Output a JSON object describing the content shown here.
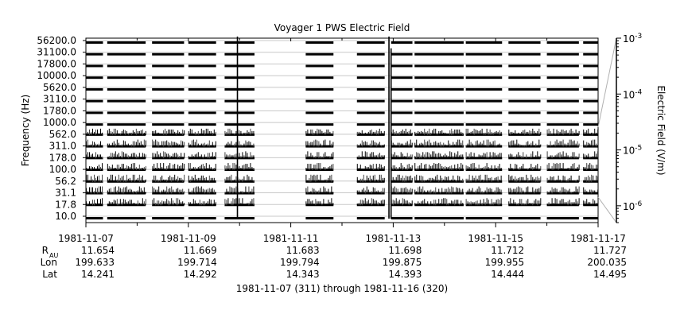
{
  "chart_data": {
    "type": "heatmap",
    "title": "Voyager 1 PWS Electric Field",
    "ylabel": "Frequency (Hz)",
    "y2label": "Electric Field (V/m)",
    "subtitle": "1981-11-07 (311) through 1981-11-16 (320)",
    "channels_hz": [
      10.0,
      17.8,
      31.1,
      56.2,
      100.0,
      178.0,
      311.0,
      562.0,
      1000.0,
      1780.0,
      3110.0,
      5620.0,
      10000.0,
      17800.0,
      31100.0,
      56200.0
    ],
    "channel_labels": [
      "10.0",
      "17.8",
      "31.1",
      "56.2",
      "100.0",
      "178.0",
      "311.0",
      "562.0",
      "1000.0",
      "1780.0",
      "3110.0",
      "5620.0",
      "10000.0",
      "17800.0",
      "31100.0",
      "56200.0"
    ],
    "x_range": [
      "1981-11-07",
      "1981-11-17"
    ],
    "x_ticks": [
      "1981-11-07",
      "1981-11-09",
      "1981-11-11",
      "1981-11-13",
      "1981-11-15",
      "1981-11-17"
    ],
    "color_scale": {
      "type": "log",
      "range": [
        5e-07,
        0.001
      ],
      "tick_mantissa": "10",
      "tick_exponents": [
        "-6",
        "-5",
        "-4",
        "-3"
      ]
    },
    "data_segments": [
      {
        "start": "1981-11-07T00:00",
        "end": "1981-11-07T08:00"
      },
      {
        "start": "1981-11-07T10:00",
        "end": "1981-11-08T04:00"
      },
      {
        "start": "1981-11-08T07:00",
        "end": "1981-11-08T22:00"
      },
      {
        "start": "1981-11-09T00:00",
        "end": "1981-11-09T13:00"
      },
      {
        "start": "1981-11-09T17:00",
        "end": "1981-11-10T07:00"
      },
      {
        "start": "1981-11-11T07:00",
        "end": "1981-11-11T20:00"
      },
      {
        "start": "1981-11-12T07:00",
        "end": "1981-11-12T20:00"
      },
      {
        "start": "1981-11-12T23:00",
        "end": "1981-11-13T09:00"
      },
      {
        "start": "1981-11-13T10:00",
        "end": "1981-11-14T09:00"
      },
      {
        "start": "1981-11-14T10:00",
        "end": "1981-11-15T03:00"
      },
      {
        "start": "1981-11-15T06:00",
        "end": "1981-11-15T21:00"
      },
      {
        "start": "1981-11-16T00:00",
        "end": "1981-11-16T15:00"
      },
      {
        "start": "1981-11-16T17:00",
        "end": "1981-11-17T00:00"
      }
    ],
    "spikes": [
      {
        "time": "1981-11-09T23:00",
        "top_hz": 56200.0
      },
      {
        "time": "1981-11-12T22:00",
        "top_hz": 56200.0
      },
      {
        "time": "1981-11-12T23:00",
        "top_hz": 31100.0
      }
    ],
    "ephemeris": {
      "rows": [
        {
          "label": "R",
          "sub": "AU",
          "values": [
            "11.654",
            "11.669",
            "11.683",
            "11.698",
            "11.712",
            "11.727"
          ]
        },
        {
          "label": "Lon",
          "sub": "",
          "values": [
            "199.633",
            "199.714",
            "199.794",
            "199.875",
            "199.955",
            "200.035"
          ]
        },
        {
          "label": "Lat",
          "sub": "",
          "values": [
            "14.241",
            "14.292",
            "14.343",
            "14.393",
            "14.444",
            "14.495"
          ]
        }
      ]
    }
  }
}
